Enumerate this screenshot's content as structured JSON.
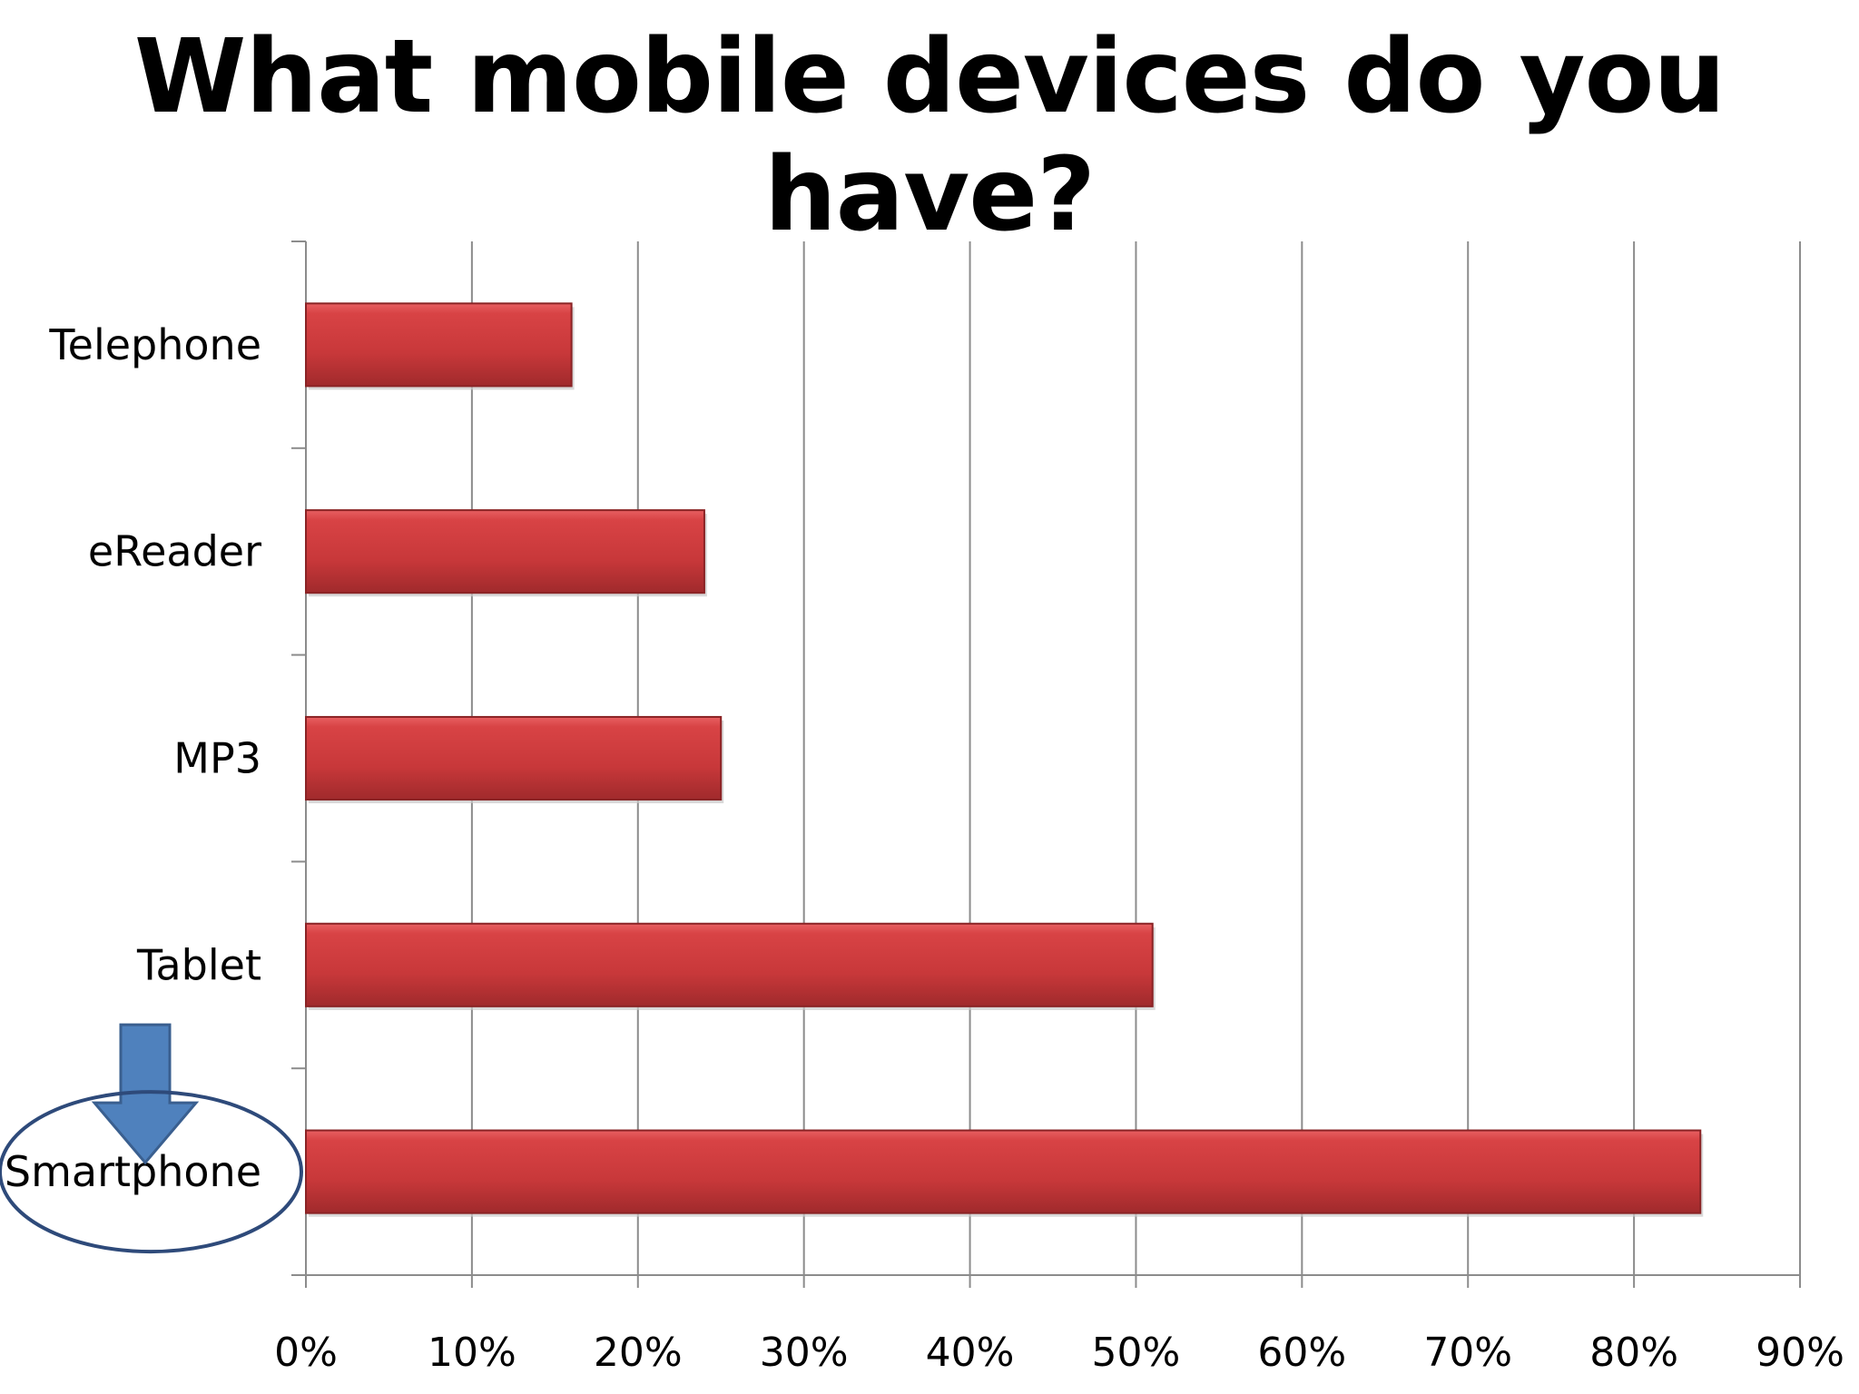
{
  "slide": {
    "title": "What mobile devices do you have?"
  },
  "chart_data": {
    "type": "bar",
    "orientation": "horizontal",
    "title": "What mobile devices do you have?",
    "categories": [
      "Telephone",
      "eReader",
      "MP3",
      "Tablet",
      "Smartphone"
    ],
    "values": [
      16,
      24,
      25,
      51,
      84
    ],
    "unit": "%",
    "xlim": [
      0,
      90
    ],
    "xticks": [
      "0%",
      "10%",
      "20%",
      "30%",
      "40%",
      "50%",
      "60%",
      "70%",
      "80%",
      "90%"
    ],
    "grid": "vertical",
    "legend": "none",
    "bar_color": "#c8383a",
    "highlighted_category": "Smartphone",
    "annotation": {
      "type": "arrow-and-ellipse",
      "target": "Smartphone",
      "arrow_color": "#4f81bd",
      "ellipse_color": "#2e4a7a"
    }
  }
}
